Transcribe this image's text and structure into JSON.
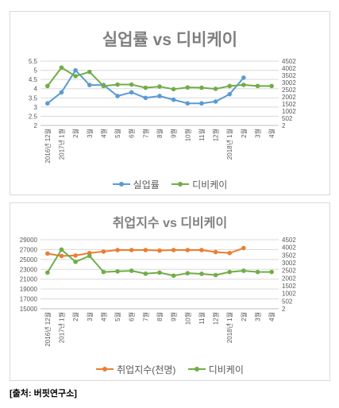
{
  "source": "[출처: 버핏연구소]",
  "chart_data": [
    {
      "type": "line",
      "title": "실업률 vs 디비케이",
      "categories": [
        "2016년 12월",
        "2017년 1월",
        "2월",
        "3월",
        "4월",
        "5월",
        "6월",
        "7월",
        "8월",
        "9월",
        "10월",
        "11월",
        "12월",
        "2018년 1월",
        "2월",
        "3월",
        "4월"
      ],
      "y_left": {
        "ticks": [
          "2",
          "2.5",
          "3",
          "3.5",
          "4",
          "4.5",
          "5",
          "5.5"
        ],
        "ylim": [
          2,
          5.5
        ]
      },
      "y_right": {
        "ticks": [
          "2",
          "502",
          "1002",
          "1502",
          "2002",
          "2502",
          "3002",
          "3502",
          "4002",
          "4502"
        ],
        "ylim": [
          2,
          4502
        ]
      },
      "series": [
        {
          "name": "실업률",
          "color": "#5b9bd5",
          "axis": "left",
          "values": [
            3.2,
            3.8,
            5.0,
            4.2,
            4.2,
            3.6,
            3.8,
            3.5,
            3.6,
            3.4,
            3.2,
            3.2,
            3.3,
            3.7,
            4.6,
            null,
            null
          ]
        },
        {
          "name": "디비케이",
          "color": "#70ad47",
          "axis": "right",
          "values": [
            2760,
            4050,
            3450,
            3750,
            2760,
            2860,
            2860,
            2640,
            2720,
            2540,
            2660,
            2640,
            2560,
            2760,
            2840,
            2760,
            2760
          ]
        }
      ],
      "legend_position": "bottom",
      "grid": true
    },
    {
      "type": "line",
      "title": "취업지수 vs 디비케이",
      "categories": [
        "2016년 12월",
        "2017년 1월",
        "2월",
        "3월",
        "4월",
        "5월",
        "6월",
        "7월",
        "8월",
        "9월",
        "10월",
        "11월",
        "12월",
        "2018년 1월",
        "2월",
        "3월",
        "4월"
      ],
      "y_left": {
        "ticks": [
          "15000",
          "17000",
          "19000",
          "21000",
          "23000",
          "25000",
          "27000",
          "29000"
        ],
        "ylim": [
          15000,
          29000
        ]
      },
      "y_right": {
        "ticks": [
          "2",
          "502",
          "1002",
          "1502",
          "2002",
          "2502",
          "3002",
          "3502",
          "4002",
          "4502"
        ],
        "ylim": [
          2,
          4502
        ]
      },
      "series": [
        {
          "name": "취업지수(천명)",
          "color": "#ed7d31",
          "axis": "left",
          "values": [
            26200,
            25700,
            25800,
            26300,
            26600,
            26900,
            26900,
            26900,
            26800,
            26900,
            26900,
            26900,
            26500,
            26300,
            27300,
            null,
            null
          ]
        },
        {
          "name": "디비케이",
          "color": "#70ad47",
          "axis": "right",
          "values": [
            2360,
            3860,
            3060,
            3450,
            2400,
            2440,
            2480,
            2290,
            2360,
            2160,
            2320,
            2280,
            2200,
            2400,
            2480,
            2400,
            2400
          ]
        }
      ],
      "legend_position": "bottom",
      "grid": true
    }
  ]
}
